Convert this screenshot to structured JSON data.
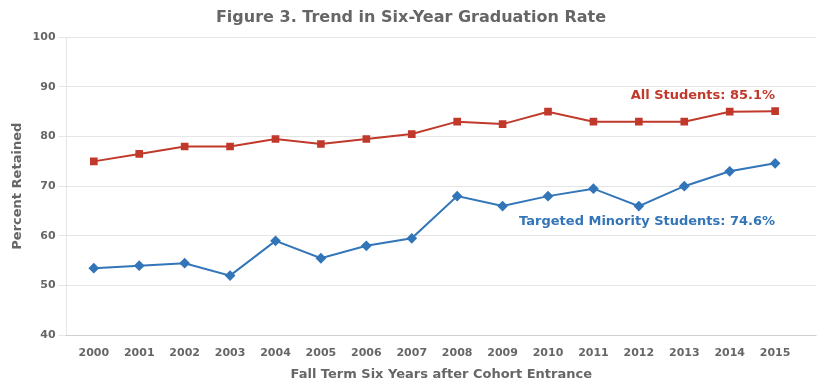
{
  "chart_data": {
    "type": "line",
    "title": "Figure 3. Trend in Six-Year Graduation Rate",
    "xlabel": "Fall Term Six Years after Cohort Entrance",
    "ylabel": "Percent Retained",
    "x": [
      2000,
      2001,
      2002,
      2003,
      2004,
      2005,
      2006,
      2007,
      2008,
      2009,
      2010,
      2011,
      2012,
      2013,
      2014,
      2015
    ],
    "series": [
      {
        "color": "#C0392B",
        "marker": "square",
        "values": [
          75.0,
          76.5,
          78.0,
          78.0,
          79.5,
          78.5,
          79.5,
          80.5,
          83.0,
          82.5,
          85.0,
          83.0,
          83.0,
          83.0,
          85.0,
          85.1
        ]
      },
      {
        "color": "#3275B8",
        "marker": "diamond",
        "values": [
          53.5,
          54.0,
          54.5,
          52.0,
          59.0,
          55.5,
          58.0,
          59.5,
          68.0,
          66.0,
          68.0,
          69.5,
          66.0,
          70.0,
          73.0,
          74.6
        ]
      }
    ],
    "annotations": [
      "All Students: 85.1%",
      "Targeted Minority Students: 74.6%"
    ],
    "xlim": [
      1999.4,
      2015.9
    ],
    "xticks": [
      2000,
      2001,
      2002,
      2003,
      2004,
      2005,
      2006,
      2007,
      2008,
      2009,
      2010,
      2011,
      2012,
      2013,
      2014,
      2015
    ],
    "ylim": [
      40,
      100
    ],
    "yticks": [
      40,
      50,
      60,
      70,
      80,
      90,
      100
    ],
    "grid": "y"
  }
}
